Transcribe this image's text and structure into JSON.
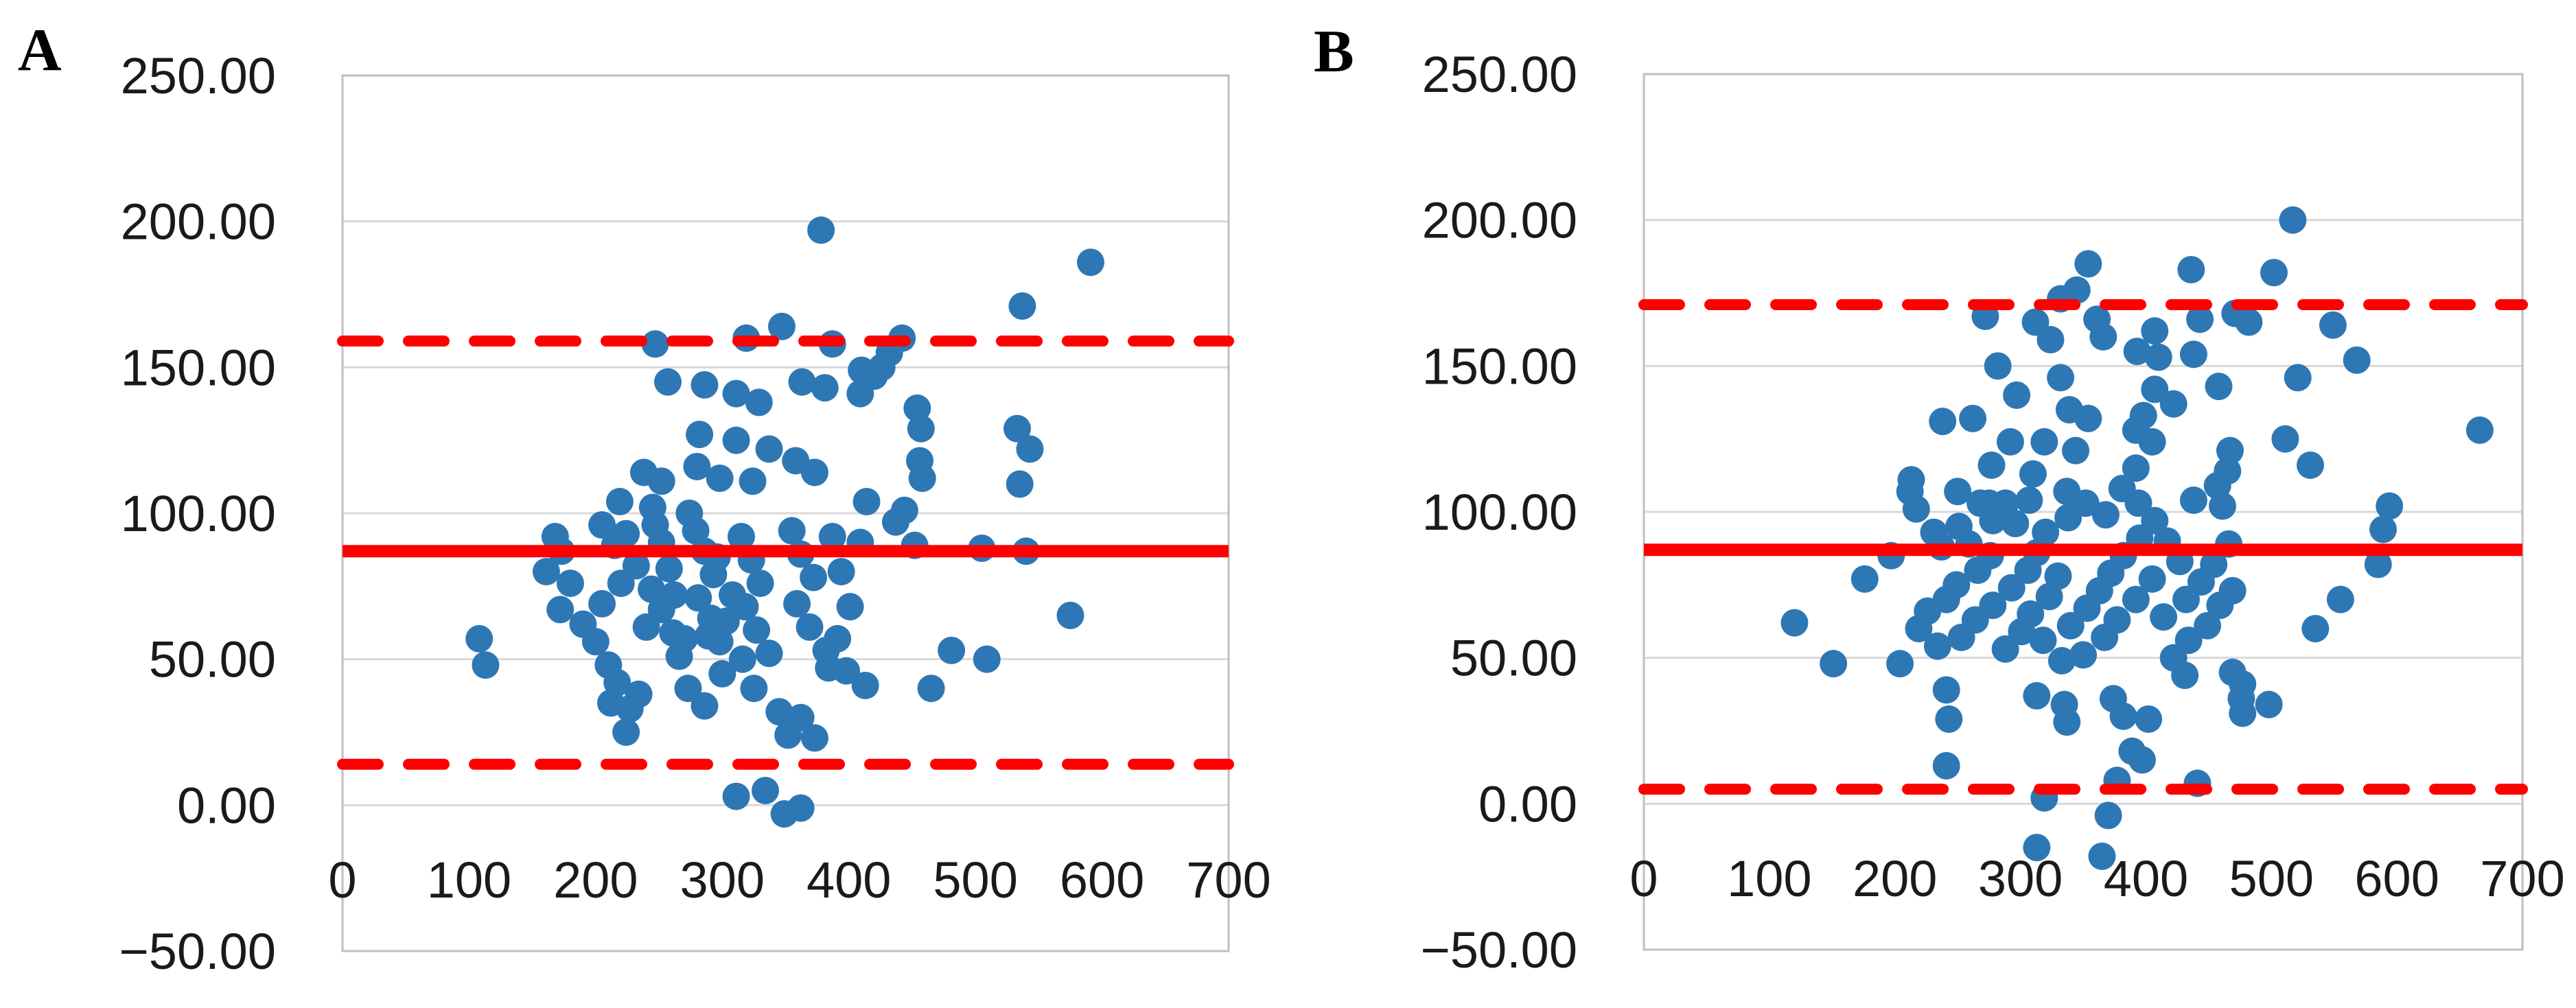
{
  "figure": {
    "background": "#ffffff",
    "panel_a_letter": "A",
    "panel_b_letter": "B"
  },
  "style": {
    "marker_color": "#2E77B5",
    "line_color": "#FF0000",
    "gridline_color": "#D9D9D9",
    "border_color": "#BFBFBF",
    "tick_label_color": "#1a1a1a"
  },
  "chart_data": [
    {
      "type": "scatter",
      "panel": "A",
      "title": "",
      "xlabel": "",
      "ylabel": "",
      "xlim": [
        0,
        700
      ],
      "ylim": [
        -50,
        250
      ],
      "x_ticks": [
        0,
        100,
        200,
        300,
        400,
        500,
        600,
        700
      ],
      "y_ticks": [
        250,
        200,
        150,
        100,
        50,
        0,
        -50
      ],
      "y_tick_labels": [
        "250.00",
        "200.00",
        "150.00",
        "100.00",
        "50.00",
        "0.00",
        "−50.00"
      ],
      "grid": "horizontal",
      "legend": "none",
      "mean_line": 87,
      "upper_loa_line": 159,
      "lower_loa_line": 14,
      "points": [
        [
          108,
          57
        ],
        [
          113,
          48
        ],
        [
          168,
          92
        ],
        [
          173,
          87
        ],
        [
          161,
          80
        ],
        [
          180,
          76
        ],
        [
          172,
          67
        ],
        [
          190,
          62
        ],
        [
          205,
          96
        ],
        [
          215,
          89
        ],
        [
          224,
          93
        ],
        [
          232,
          82
        ],
        [
          220,
          76
        ],
        [
          205,
          69
        ],
        [
          200,
          56
        ],
        [
          210,
          48
        ],
        [
          217,
          42
        ],
        [
          227,
          33
        ],
        [
          224,
          25
        ],
        [
          247,
          96
        ],
        [
          252,
          90
        ],
        [
          258,
          81
        ],
        [
          244,
          74
        ],
        [
          252,
          67
        ],
        [
          261,
          59
        ],
        [
          266,
          51
        ],
        [
          279,
          94
        ],
        [
          286,
          87
        ],
        [
          293,
          79
        ],
        [
          281,
          71
        ],
        [
          291,
          64
        ],
        [
          298,
          56
        ],
        [
          286,
          34
        ],
        [
          300,
          45
        ],
        [
          315,
          92
        ],
        [
          323,
          84
        ],
        [
          330,
          76
        ],
        [
          318,
          68
        ],
        [
          327,
          60
        ],
        [
          337,
          52
        ],
        [
          325,
          40
        ],
        [
          345,
          32
        ],
        [
          352,
          24
        ],
        [
          355,
          94
        ],
        [
          362,
          86
        ],
        [
          372,
          78
        ],
        [
          359,
          69
        ],
        [
          369,
          61
        ],
        [
          382,
          53
        ],
        [
          387,
          92
        ],
        [
          394,
          80
        ],
        [
          401,
          68
        ],
        [
          391,
          57
        ],
        [
          398,
          46
        ],
        [
          409,
          90
        ],
        [
          378,
          197
        ],
        [
          247,
          158
        ],
        [
          319,
          160
        ],
        [
          347,
          164
        ],
        [
          387,
          158
        ],
        [
          257,
          145
        ],
        [
          286,
          144
        ],
        [
          311,
          141
        ],
        [
          329,
          138
        ],
        [
          363,
          145
        ],
        [
          381,
          143
        ],
        [
          282,
          127
        ],
        [
          311,
          125
        ],
        [
          337,
          122
        ],
        [
          238,
          114
        ],
        [
          252,
          111
        ],
        [
          280,
          116
        ],
        [
          298,
          112
        ],
        [
          324,
          111
        ],
        [
          358,
          118
        ],
        [
          373,
          114
        ],
        [
          219,
          104
        ],
        [
          245,
          102
        ],
        [
          274,
          100
        ],
        [
          591,
          186
        ],
        [
          537,
          171
        ],
        [
          442,
          160
        ],
        [
          432,
          155
        ],
        [
          426,
          150
        ],
        [
          420,
          147
        ],
        [
          454,
          136
        ],
        [
          457,
          129
        ],
        [
          533,
          129
        ],
        [
          543,
          122
        ],
        [
          456,
          118
        ],
        [
          458,
          112
        ],
        [
          410,
          149
        ],
        [
          409,
          141
        ],
        [
          535,
          110
        ],
        [
          414,
          104
        ],
        [
          444,
          101
        ],
        [
          413,
          41
        ],
        [
          465,
          40
        ],
        [
          509,
          50
        ],
        [
          481,
          53
        ],
        [
          362,
          30
        ],
        [
          373,
          23
        ],
        [
          234,
          38
        ],
        [
          212,
          35
        ],
        [
          273,
          40
        ],
        [
          384,
          47
        ],
        [
          311,
          3
        ],
        [
          334,
          5
        ],
        [
          349,
          -3
        ],
        [
          362,
          -1
        ],
        [
          575,
          65
        ],
        [
          540,
          87
        ],
        [
          505,
          88
        ],
        [
          437,
          97
        ],
        [
          452,
          89
        ],
        [
          240,
          61
        ],
        [
          262,
          72
        ],
        [
          270,
          57
        ],
        [
          296,
          85
        ],
        [
          308,
          72
        ],
        [
          316,
          50
        ],
        [
          303,
          63
        ],
        [
          289,
          58
        ]
      ]
    },
    {
      "type": "scatter",
      "panel": "B",
      "title": "",
      "xlabel": "",
      "ylabel": "",
      "xlim": [
        0,
        700
      ],
      "ylim": [
        -50,
        250
      ],
      "x_ticks": [
        0,
        100,
        200,
        300,
        400,
        500,
        600,
        700
      ],
      "y_ticks": [
        250,
        200,
        150,
        100,
        50,
        0,
        -50
      ],
      "y_tick_labels": [
        "250.00",
        "200.00",
        "150.00",
        "100.00",
        "50.00",
        "0.00",
        "−50.00"
      ],
      "grid": "horizontal",
      "legend": "none",
      "mean_line": 87,
      "upper_loa_line": 171,
      "lower_loa_line": 5,
      "points": [
        [
          354,
          185
        ],
        [
          332,
          173
        ],
        [
          272,
          167
        ],
        [
          312,
          165
        ],
        [
          324,
          159
        ],
        [
          361,
          166
        ],
        [
          366,
          160
        ],
        [
          282,
          150
        ],
        [
          297,
          140
        ],
        [
          332,
          146
        ],
        [
          339,
          135
        ],
        [
          354,
          132
        ],
        [
          238,
          131
        ],
        [
          262,
          132
        ],
        [
          292,
          124
        ],
        [
          319,
          124
        ],
        [
          344,
          121
        ],
        [
          277,
          116
        ],
        [
          310,
          113
        ],
        [
          213,
          111
        ],
        [
          250,
          107
        ],
        [
          275,
          103
        ],
        [
          307,
          104
        ],
        [
          337,
          107
        ],
        [
          151,
          48
        ],
        [
          241,
          39
        ],
        [
          243,
          29
        ],
        [
          241,
          13
        ],
        [
          313,
          37
        ],
        [
          335,
          34
        ],
        [
          337,
          28
        ],
        [
          374,
          36
        ],
        [
          382,
          30
        ],
        [
          389,
          18
        ],
        [
          397,
          15
        ],
        [
          402,
          29
        ],
        [
          431,
          44
        ],
        [
          469,
          45
        ],
        [
          476,
          36
        ],
        [
          377,
          8
        ],
        [
          441,
          7
        ],
        [
          319,
          2
        ],
        [
          370,
          -4
        ],
        [
          313,
          -15
        ],
        [
          365,
          -18
        ],
        [
          517,
          200
        ],
        [
          436,
          183
        ],
        [
          502,
          182
        ],
        [
          443,
          166
        ],
        [
          471,
          168
        ],
        [
          482,
          165
        ],
        [
          407,
          162
        ],
        [
          393,
          155
        ],
        [
          410,
          153
        ],
        [
          438,
          154
        ],
        [
          549,
          164
        ],
        [
          568,
          152
        ],
        [
          407,
          142
        ],
        [
          422,
          137
        ],
        [
          458,
          143
        ],
        [
          398,
          133
        ],
        [
          392,
          128
        ],
        [
          405,
          124
        ],
        [
          666,
          128
        ],
        [
          467,
          121
        ],
        [
          392,
          115
        ],
        [
          465,
          114
        ],
        [
          457,
          109
        ],
        [
          438,
          104
        ],
        [
          461,
          102
        ],
        [
          594,
          102
        ],
        [
          120,
          62
        ],
        [
          176,
          77
        ],
        [
          197,
          85
        ],
        [
          212,
          107
        ],
        [
          217,
          101
        ],
        [
          231,
          93
        ],
        [
          237,
          88
        ],
        [
          251,
          95
        ],
        [
          259,
          89
        ],
        [
          268,
          103
        ],
        [
          278,
          97
        ],
        [
          288,
          103
        ],
        [
          296,
          96
        ],
        [
          276,
          85
        ],
        [
          266,
          80
        ],
        [
          249,
          75
        ],
        [
          241,
          70
        ],
        [
          226,
          66
        ],
        [
          219,
          60
        ],
        [
          234,
          54
        ],
        [
          253,
          57
        ],
        [
          264,
          63
        ],
        [
          278,
          68
        ],
        [
          293,
          74
        ],
        [
          306,
          80
        ],
        [
          313,
          86
        ],
        [
          320,
          93
        ],
        [
          338,
          98
        ],
        [
          330,
          78
        ],
        [
          323,
          71
        ],
        [
          308,
          65
        ],
        [
          301,
          59
        ],
        [
          288,
          53
        ],
        [
          318,
          56
        ],
        [
          340,
          61
        ],
        [
          353,
          67
        ],
        [
          363,
          73
        ],
        [
          372,
          79
        ],
        [
          382,
          85
        ],
        [
          395,
          91
        ],
        [
          407,
          97
        ],
        [
          417,
          90
        ],
        [
          427,
          83
        ],
        [
          405,
          77
        ],
        [
          392,
          70
        ],
        [
          377,
          63
        ],
        [
          367,
          57
        ],
        [
          350,
          51
        ],
        [
          333,
          49
        ],
        [
          414,
          64
        ],
        [
          432,
          70
        ],
        [
          444,
          76
        ],
        [
          454,
          82
        ],
        [
          466,
          89
        ],
        [
          449,
          61
        ],
        [
          434,
          56
        ],
        [
          422,
          50
        ],
        [
          459,
          68
        ],
        [
          469,
          73
        ],
        [
          204,
          48
        ],
        [
          589,
          94
        ],
        [
          585,
          82
        ],
        [
          555,
          70
        ],
        [
          535,
          60
        ],
        [
          498,
          34
        ],
        [
          477,
          41
        ],
        [
          477,
          31
        ],
        [
          345,
          176
        ],
        [
          521,
          146
        ],
        [
          511,
          125
        ],
        [
          531,
          116
        ],
        [
          352,
          103
        ],
        [
          368,
          99
        ],
        [
          381,
          108
        ],
        [
          394,
          103
        ]
      ]
    }
  ]
}
